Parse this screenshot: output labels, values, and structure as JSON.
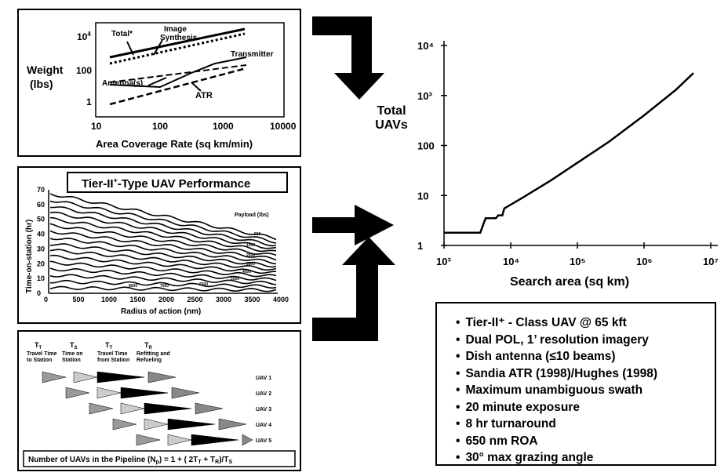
{
  "panel1": {
    "ylabel": "Weight\n(lbs)",
    "xlabel": "Area Coverage Rate (sq km/min)",
    "yticks": [
      "10⁴",
      "100",
      "1"
    ],
    "xticks": [
      "10",
      "100",
      "1000",
      "10000"
    ],
    "labels": {
      "total": "Total*",
      "image": "Image\nSynthesis",
      "transmitter": "Transmitter",
      "antenna": "Antenna(s)",
      "atr": "ATR"
    }
  },
  "panel2": {
    "title": "Tier-II⁺-Type UAV Performance",
    "ylabel": "Time-on-station (hr)",
    "xlabel": "Radius of action (nm)",
    "yticks": [
      "0",
      "10",
      "20",
      "30",
      "40",
      "50",
      "60",
      "70"
    ],
    "xticks": [
      "0",
      "500",
      "1000",
      "1500",
      "2000",
      "2500",
      "3000",
      "3500",
      "4000"
    ],
    "legend": "Payload (lbs)",
    "payloads": [
      "500",
      "1500",
      "2500",
      "3500",
      "4500",
      "5500",
      "6500",
      "7500",
      "8500"
    ]
  },
  "panel3": {
    "phases": [
      {
        "sym": "T",
        "sub": "T",
        "text": "Travel Time\nto Station"
      },
      {
        "sym": "T",
        "sub": "S",
        "text": "Time on\nStation"
      },
      {
        "sym": "T",
        "sub": "T",
        "text": "Travel Time\nfrom Station"
      },
      {
        "sym": "T",
        "sub": "R",
        "text": "Refitting and\nRefueling"
      }
    ],
    "uavs": [
      "UAV 1",
      "UAV 2",
      "UAV 3",
      "UAV 4",
      "UAV 5"
    ],
    "formula": "Number of UAVs in the Pipeline (N"
  },
  "main_chart": {
    "ylabel": "Total\nUAVs",
    "xlabel": "Search area (sq km)",
    "yticks": [
      "10⁴",
      "10³",
      "100",
      "10",
      "1"
    ],
    "xticks": [
      "10³",
      "10⁴",
      "10⁵",
      "10⁶",
      "10⁷"
    ]
  },
  "chart_data": {
    "type": "line",
    "title": "",
    "xlabel": "Search area (sq km)",
    "ylabel": "Total UAVs",
    "x_scale": "log",
    "y_scale": "log",
    "xlim": [
      1000,
      10000000
    ],
    "ylim": [
      1,
      10000
    ],
    "series": [
      {
        "x": [
          1000,
          3500,
          4200,
          6000,
          6500,
          7500,
          8000,
          15000,
          40000,
          100000,
          300000,
          1000000,
          3000000,
          5500000
        ],
        "y": [
          1.8,
          1.8,
          3.5,
          3.5,
          4,
          4,
          5.5,
          9,
          20,
          45,
          120,
          400,
          1300,
          2800
        ]
      }
    ],
    "grid": false
  },
  "assumptions": [
    "Tier-II⁺ - Class UAV @ 65 kft",
    "Dual POL, 1’ resolution imagery",
    "Dish antenna (≤10 beams)",
    "Sandia ATR (1998)/Hughes (1998)",
    "Maximum unambiguous swath",
    "20 minute exposure",
    "8 hr turnaround",
    "650 nm ROA",
    "30° max grazing angle"
  ]
}
